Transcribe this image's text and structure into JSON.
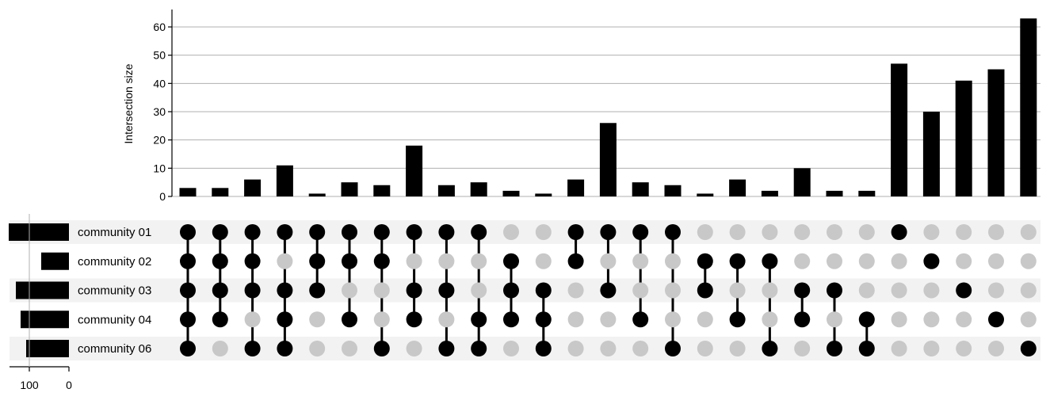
{
  "chart_data": {
    "type": "upset",
    "ylabel": "Intersection size",
    "yticks": [
      0,
      10,
      20,
      30,
      40,
      50,
      60
    ],
    "ylim": [
      0,
      66
    ],
    "grid": true,
    "sets": [
      "community 01",
      "community 02",
      "community 03",
      "community 04",
      "community 06"
    ],
    "set_size_ticks": [
      100,
      0
    ],
    "set_sizes": [
      152,
      70,
      134,
      122,
      108
    ],
    "set_size_max": 176,
    "intersections": [
      {
        "members": [
          1,
          1,
          1,
          1,
          1
        ],
        "size": 3
      },
      {
        "members": [
          1,
          1,
          1,
          1,
          0
        ],
        "size": 3
      },
      {
        "members": [
          1,
          1,
          1,
          0,
          1
        ],
        "size": 6
      },
      {
        "members": [
          1,
          0,
          1,
          1,
          1
        ],
        "size": 11
      },
      {
        "members": [
          1,
          1,
          1,
          0,
          0
        ],
        "size": 1
      },
      {
        "members": [
          1,
          1,
          0,
          1,
          0
        ],
        "size": 5
      },
      {
        "members": [
          1,
          1,
          0,
          0,
          1
        ],
        "size": 4
      },
      {
        "members": [
          1,
          0,
          1,
          1,
          0
        ],
        "size": 18
      },
      {
        "members": [
          1,
          0,
          1,
          0,
          1
        ],
        "size": 4
      },
      {
        "members": [
          1,
          0,
          0,
          1,
          1
        ],
        "size": 5
      },
      {
        "members": [
          0,
          1,
          1,
          1,
          0
        ],
        "size": 2
      },
      {
        "members": [
          0,
          0,
          1,
          1,
          1
        ],
        "size": 1
      },
      {
        "members": [
          1,
          1,
          0,
          0,
          0
        ],
        "size": 6
      },
      {
        "members": [
          1,
          0,
          1,
          0,
          0
        ],
        "size": 26
      },
      {
        "members": [
          1,
          0,
          0,
          1,
          0
        ],
        "size": 5
      },
      {
        "members": [
          1,
          0,
          0,
          0,
          1
        ],
        "size": 4
      },
      {
        "members": [
          0,
          1,
          1,
          0,
          0
        ],
        "size": 1
      },
      {
        "members": [
          0,
          1,
          0,
          1,
          0
        ],
        "size": 6
      },
      {
        "members": [
          0,
          1,
          0,
          0,
          1
        ],
        "size": 2
      },
      {
        "members": [
          0,
          0,
          1,
          1,
          0
        ],
        "size": 10
      },
      {
        "members": [
          0,
          0,
          1,
          0,
          1
        ],
        "size": 2
      },
      {
        "members": [
          0,
          0,
          0,
          1,
          1
        ],
        "size": 2
      },
      {
        "members": [
          1,
          0,
          0,
          0,
          0
        ],
        "size": 47
      },
      {
        "members": [
          0,
          1,
          0,
          0,
          0
        ],
        "size": 30
      },
      {
        "members": [
          0,
          0,
          1,
          0,
          0
        ],
        "size": 41
      },
      {
        "members": [
          0,
          0,
          0,
          1,
          0
        ],
        "size": 45
      },
      {
        "members": [
          0,
          0,
          0,
          0,
          1
        ],
        "size": 63
      }
    ],
    "colors": {
      "active": "#000000",
      "inactive": "#c8c8c8",
      "stripe": "#f2f2f2",
      "grid": "#b0b0b0"
    }
  }
}
